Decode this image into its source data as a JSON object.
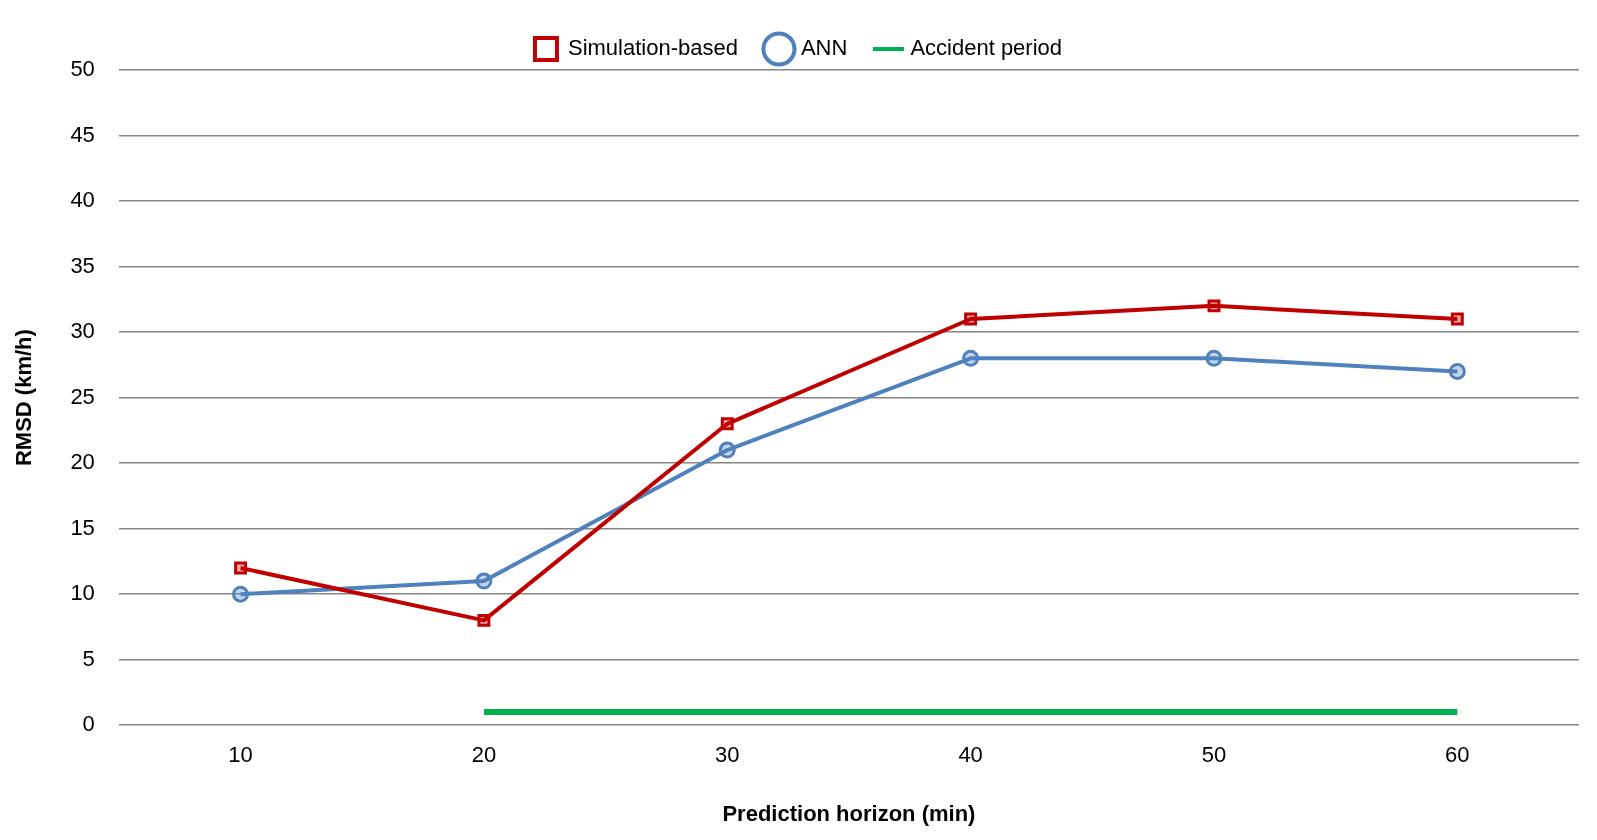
{
  "chart_data": {
    "type": "line",
    "xlabel": "Prediction horizon (min)",
    "ylabel": "RMSD (km/h)",
    "categories": [
      "10",
      "20",
      "30",
      "40",
      "50",
      "60"
    ],
    "series": [
      {
        "name": "Simulation-based",
        "color": "#c00000",
        "values": [
          12,
          8,
          23,
          31,
          32,
          31
        ],
        "marker": "square"
      },
      {
        "name": "ANN",
        "color": "#4f81bd",
        "values": [
          10,
          11,
          21,
          28,
          28,
          27
        ],
        "marker": "circle"
      },
      {
        "name": "Accident period",
        "color": "#00b050",
        "values": [
          null,
          1,
          1,
          1,
          1,
          1
        ],
        "marker": "none"
      }
    ],
    "ylim": [
      0,
      50
    ],
    "yticks": [
      0,
      5,
      10,
      15,
      20,
      25,
      30,
      35,
      40,
      45,
      50
    ],
    "grid": "y",
    "legend": "top",
    "line_style": "solid"
  }
}
